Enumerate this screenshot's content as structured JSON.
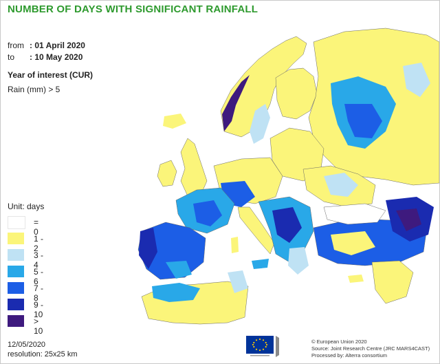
{
  "title": "NUMBER OF DAYS WITH SIGNIFICANT RAINFALL",
  "period": {
    "from_label": "from",
    "from_value": ": 01 April 2020",
    "to_label": "to",
    "to_value": ": 10 May 2020"
  },
  "year_of_interest": "Year of interest (CUR)",
  "rain_threshold": "Rain (mm) > 5",
  "legend": {
    "unit": "Unit: days",
    "items": [
      {
        "label": "= 0",
        "color": "#ffffff"
      },
      {
        "label": "1 - 2",
        "color": "#fbf57a"
      },
      {
        "label": "3 - 4",
        "color": "#bfe2f4"
      },
      {
        "label": "5 - 6",
        "color": "#29a8e8"
      },
      {
        "label": "7 - 8",
        "color": "#1c5ee6"
      },
      {
        "label": "9 - 10",
        "color": "#1a2bb0"
      },
      {
        "label": "> 10",
        "color": "#3e1a7e"
      }
    ]
  },
  "footer": {
    "date": "12/05/2020",
    "resolution": "resolution: 25x25 km",
    "copyright": "© European Union 2020",
    "source": "Source: Joint Research Centre (JRC MARS4CAST)",
    "processed": "Processed by: Alterra consortium"
  },
  "colors": {
    "title": "#2e9a2e",
    "sea": "#ffffff",
    "borders": "#555555"
  }
}
